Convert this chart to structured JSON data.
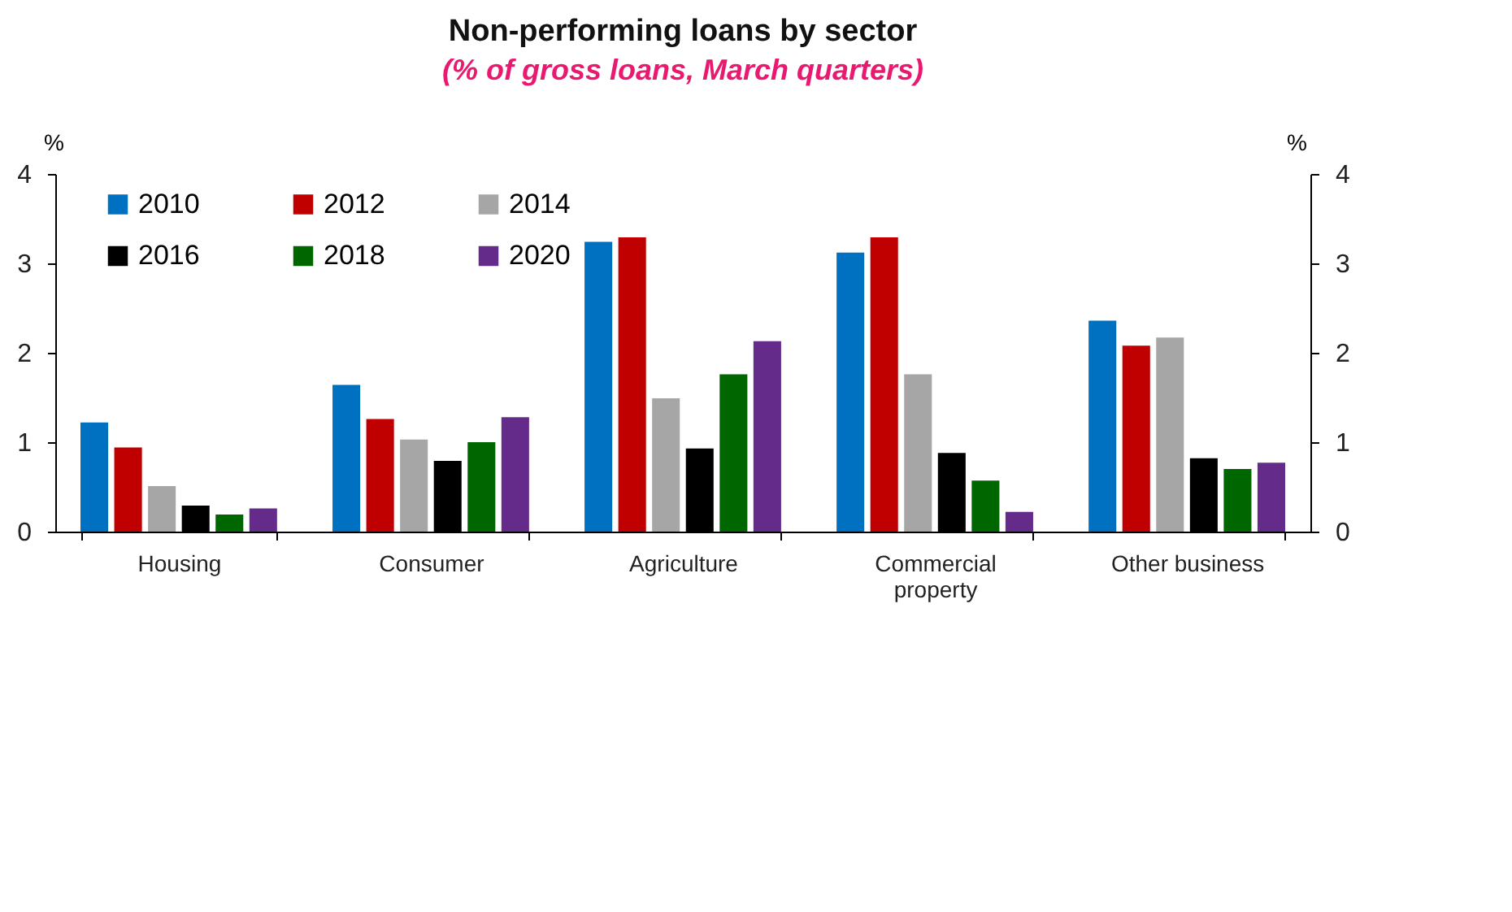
{
  "chart_data": {
    "type": "bar",
    "title": "Non-performing loans by sector",
    "subtitle": "(% of gross loans, March quarters)",
    "ylabel": "%",
    "y2label": "%",
    "categories": [
      "Housing",
      "Consumer",
      "Agriculture",
      "Commercial property",
      "Other business"
    ],
    "series": [
      {
        "name": "2010",
        "color": "#0070c0",
        "values": [
          1.22,
          1.64,
          3.24,
          3.12,
          2.36
        ]
      },
      {
        "name": "2012",
        "color": "#c00000",
        "values": [
          0.94,
          1.26,
          3.29,
          3.29,
          2.08
        ]
      },
      {
        "name": "2014",
        "color": "#a6a6a6",
        "values": [
          0.51,
          1.03,
          1.49,
          1.76,
          2.17
        ]
      },
      {
        "name": "2016",
        "color": "#000000",
        "values": [
          0.29,
          0.79,
          0.93,
          0.88,
          0.82
        ]
      },
      {
        "name": "2018",
        "color": "#006600",
        "values": [
          0.19,
          1.0,
          1.76,
          0.57,
          0.7
        ]
      },
      {
        "name": "2020",
        "color": "#652b8a",
        "values": [
          0.26,
          1.28,
          2.13,
          0.22,
          0.77
        ]
      }
    ],
    "ylim": [
      0,
      4
    ],
    "yticks": [
      0,
      1,
      2,
      3,
      4
    ],
    "y2lim": [
      0,
      4
    ],
    "y2ticks": [
      0,
      1,
      2,
      3,
      4
    ],
    "grid": false,
    "legend": "top left"
  }
}
